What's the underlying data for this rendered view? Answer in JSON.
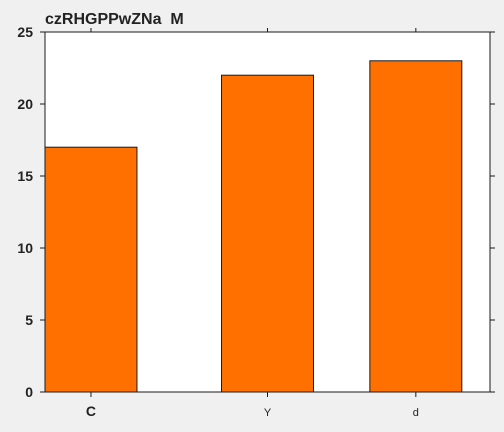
{
  "chart_data": {
    "type": "bar",
    "title": "czRHGPPwZNa  M",
    "categories": [
      "C",
      "Y",
      "d"
    ],
    "values": [
      17,
      22,
      23
    ],
    "xlabel": "",
    "ylabel": "",
    "ylim": [
      0,
      25
    ],
    "yticks": [
      0,
      5,
      10,
      15,
      20,
      25
    ],
    "grid": false,
    "legend": "none",
    "colors": {
      "bar_fill": "#ff7000",
      "bar_stroke": "#1a1a1a",
      "plot_background": "#ffffff",
      "figure_background": "#f0f0f0",
      "axis": "#1a1a1a",
      "text": "#222222"
    }
  }
}
